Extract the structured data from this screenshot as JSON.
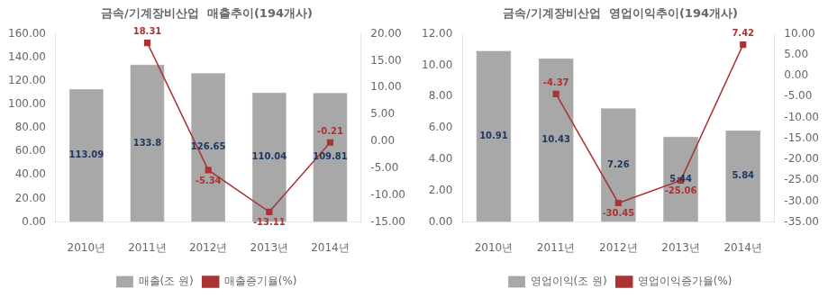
{
  "chart_data": [
    {
      "type": "bar",
      "title": "금속/기계장비산업  매출추이(194개사)",
      "categories": [
        "2010년",
        "2011년",
        "2012년",
        "2013년",
        "2014년"
      ],
      "series": [
        {
          "name": "매출(조 원)",
          "type": "bar",
          "color": "#A8A8A8",
          "values": [
            113.09,
            133.8,
            126.65,
            110.04,
            109.81
          ]
        },
        {
          "name": "매출증기율(%)",
          "type": "line",
          "axis": "y2",
          "color": "#AA3333",
          "marker": "square",
          "values": [
            null,
            18.31,
            -5.34,
            -13.11,
            -0.21
          ]
        }
      ],
      "ylim": [
        0,
        160
      ],
      "yticks": [
        {
          "value": 0,
          "label": "0.00"
        },
        {
          "value": 20,
          "label": "20.00"
        },
        {
          "value": 40,
          "label": "40.00"
        },
        {
          "value": 60,
          "label": "60.00"
        },
        {
          "value": 80,
          "label": "80.00"
        },
        {
          "value": 100,
          "label": "100.00"
        },
        {
          "value": 120,
          "label": "120.00"
        },
        {
          "value": 140,
          "label": "140.00"
        },
        {
          "value": 160,
          "label": "160.00"
        }
      ],
      "y2lim": [
        -15,
        20
      ],
      "y2ticks": [
        {
          "value": -15,
          "label": "-15.00"
        },
        {
          "value": -10,
          "label": "-10.00"
        },
        {
          "value": -5,
          "label": "-5.00"
        },
        {
          "value": 0,
          "label": "0.00"
        },
        {
          "value": 5,
          "label": "5.00"
        },
        {
          "value": 10,
          "label": "10.00"
        },
        {
          "value": 15,
          "label": "15.00"
        },
        {
          "value": 20,
          "label": "20.00"
        }
      ],
      "grid": false,
      "legend": "bottom",
      "data_labels": true
    },
    {
      "type": "bar",
      "title": "금속/기계장비산업  영업이익추이(194개사)",
      "categories": [
        "2010년",
        "2011년",
        "2012년",
        "2013년",
        "2014년"
      ],
      "series": [
        {
          "name": "영업이익(조 원)",
          "type": "bar",
          "color": "#A8A8A8",
          "values": [
            10.91,
            10.43,
            7.26,
            5.44,
            5.84
          ]
        },
        {
          "name": "영업이익증가율(%)",
          "type": "line",
          "axis": "y2",
          "color": "#AA3333",
          "marker": "square",
          "values": [
            null,
            -4.37,
            -30.45,
            -25.06,
            7.42
          ]
        }
      ],
      "ylim": [
        0,
        12
      ],
      "yticks": [
        {
          "value": 0,
          "label": "0.00"
        },
        {
          "value": 2,
          "label": "2.00"
        },
        {
          "value": 4,
          "label": "4.00"
        },
        {
          "value": 6,
          "label": "6.00"
        },
        {
          "value": 8,
          "label": "8.00"
        },
        {
          "value": 10,
          "label": "10.00"
        },
        {
          "value": 12,
          "label": "12.00"
        }
      ],
      "y2lim": [
        -35,
        10
      ],
      "y2ticks": [
        {
          "value": -35,
          "label": "-35.00"
        },
        {
          "value": -30,
          "label": "-30.00"
        },
        {
          "value": -25,
          "label": "-25.00"
        },
        {
          "value": -20,
          "label": "-20.00"
        },
        {
          "value": -15,
          "label": "-15.00"
        },
        {
          "value": -10,
          "label": "-10.00"
        },
        {
          "value": -5,
          "label": "-5.00"
        },
        {
          "value": 0,
          "label": "0.00"
        },
        {
          "value": 5,
          "label": "5.00"
        },
        {
          "value": 10,
          "label": "10.00"
        }
      ],
      "grid": false,
      "legend": "bottom",
      "data_labels": true
    }
  ]
}
